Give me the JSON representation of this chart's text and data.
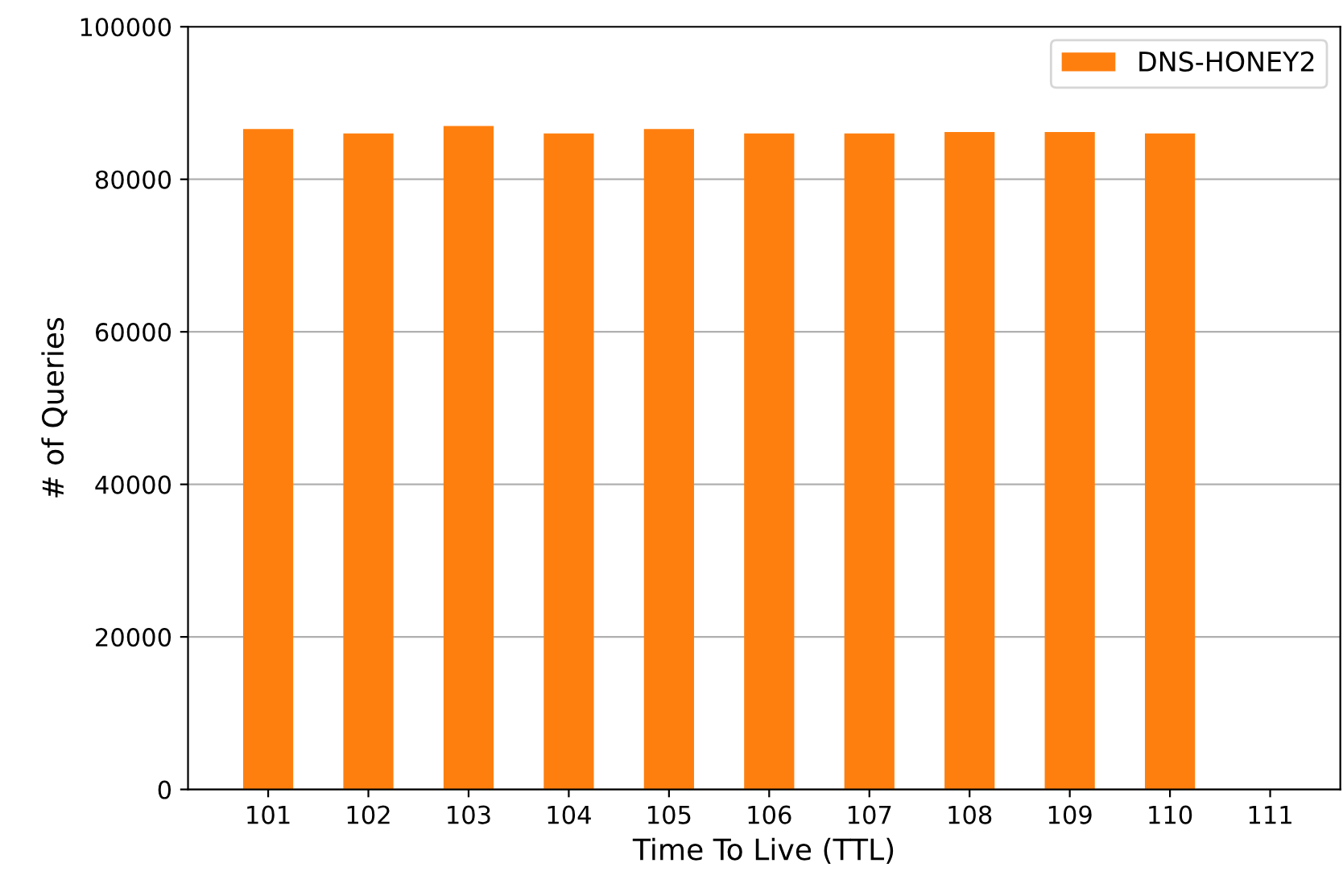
{
  "chart_data": {
    "type": "bar",
    "xlabel": "Time To Live (TTL)",
    "ylabel": "# of Queries",
    "categories": [
      "101",
      "102",
      "103",
      "104",
      "105",
      "106",
      "107",
      "108",
      "109",
      "110",
      "111"
    ],
    "series": [
      {
        "name": "DNS-HONEY2",
        "color": "#ff7f0e",
        "values": [
          86600,
          86000,
          87000,
          86000,
          86600,
          86000,
          86000,
          86200,
          86200,
          86000,
          0
        ]
      }
    ],
    "ylim": [
      0,
      100000
    ],
    "yticks": [
      0,
      20000,
      40000,
      60000,
      80000,
      100000
    ],
    "grid": "y",
    "legend": "top right"
  }
}
